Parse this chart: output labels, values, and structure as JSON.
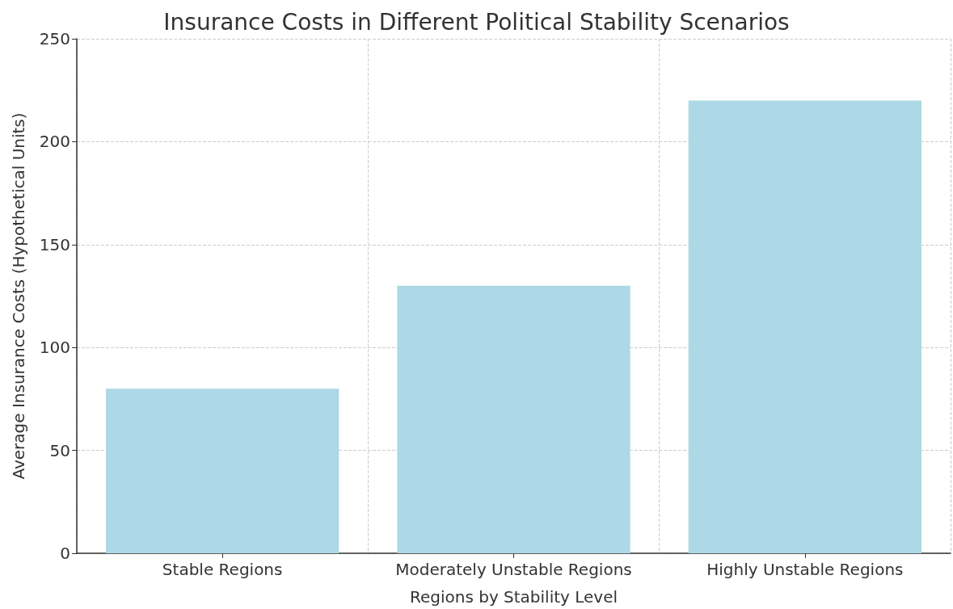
{
  "chart_data": {
    "type": "bar",
    "title": "Insurance Costs in Different Political Stability Scenarios",
    "xlabel": "Regions by Stability Level",
    "ylabel": "Average Insurance Costs (Hypothetical Units)",
    "categories": [
      "Stable Regions",
      "Moderately Unstable Regions",
      "Highly Unstable Regions"
    ],
    "values": [
      80,
      130,
      220
    ],
    "color": "#add8e6",
    "ylim": [
      0,
      250
    ],
    "yticks": [
      0,
      50,
      100,
      150,
      200,
      250
    ],
    "grid": true
  }
}
